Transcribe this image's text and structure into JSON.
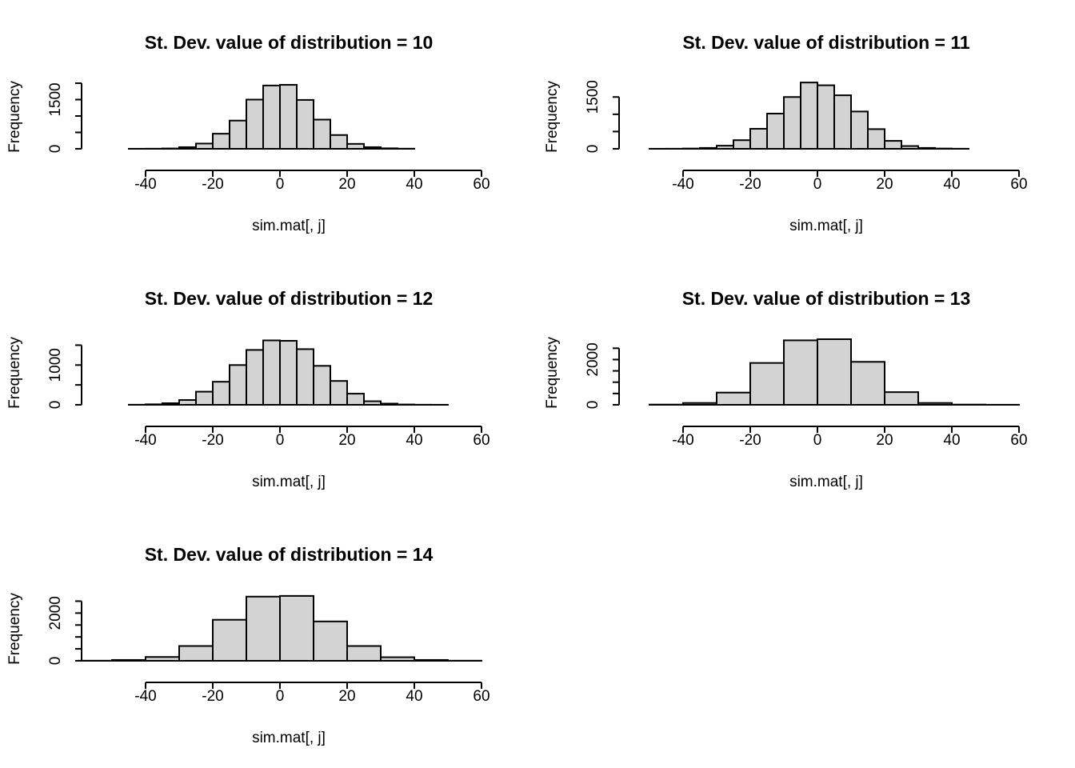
{
  "chart_data": [
    {
      "type": "bar",
      "title": "St. Dev. value of distribution =  10",
      "xlabel": "sim.mat[, j]",
      "ylabel": "Frequency",
      "x_ticks": [
        -40,
        -20,
        0,
        20,
        40,
        60
      ],
      "y_ticks": [
        0,
        500,
        1000,
        1500,
        2000
      ],
      "y_tick_labels": [
        "0",
        "",
        "",
        "1500",
        ""
      ],
      "xlim": [
        -40,
        60
      ],
      "ylim": [
        0,
        2000
      ],
      "bins": [
        {
          "x0": -45,
          "x1": -40,
          "count": 1
        },
        {
          "x0": -40,
          "x1": -35,
          "count": 3
        },
        {
          "x0": -35,
          "x1": -30,
          "count": 10
        },
        {
          "x0": -30,
          "x1": -25,
          "count": 50
        },
        {
          "x0": -25,
          "x1": -20,
          "count": 160
        },
        {
          "x0": -20,
          "x1": -15,
          "count": 460
        },
        {
          "x0": -15,
          "x1": -10,
          "count": 860
        },
        {
          "x0": -10,
          "x1": -5,
          "count": 1500
        },
        {
          "x0": -5,
          "x1": 0,
          "count": 1930
        },
        {
          "x0": 0,
          "x1": 5,
          "count": 1950
        },
        {
          "x0": 5,
          "x1": 10,
          "count": 1490
        },
        {
          "x0": 10,
          "x1": 15,
          "count": 890
        },
        {
          "x0": 15,
          "x1": 20,
          "count": 420
        },
        {
          "x0": 20,
          "x1": 25,
          "count": 150
        },
        {
          "x0": 25,
          "x1": 30,
          "count": 50
        },
        {
          "x0": 30,
          "x1": 35,
          "count": 15
        },
        {
          "x0": 35,
          "x1": 40,
          "count": 4
        }
      ]
    },
    {
      "type": "bar",
      "title": "St. Dev. value of distribution =  11",
      "xlabel": "sim.mat[, j]",
      "ylabel": "Frequency",
      "x_ticks": [
        -40,
        -20,
        0,
        20,
        40,
        60
      ],
      "y_ticks": [
        0,
        500,
        1000,
        1500
      ],
      "y_tick_labels": [
        "0",
        "",
        "",
        "1500"
      ],
      "xlim": [
        -40,
        60
      ],
      "ylim": [
        0,
        1900
      ],
      "bins": [
        {
          "x0": -50,
          "x1": -45,
          "count": 1
        },
        {
          "x0": -45,
          "x1": -40,
          "count": 2
        },
        {
          "x0": -40,
          "x1": -35,
          "count": 8
        },
        {
          "x0": -35,
          "x1": -30,
          "count": 25
        },
        {
          "x0": -30,
          "x1": -25,
          "count": 90
        },
        {
          "x0": -25,
          "x1": -20,
          "count": 250
        },
        {
          "x0": -20,
          "x1": -15,
          "count": 580
        },
        {
          "x0": -15,
          "x1": -10,
          "count": 1020
        },
        {
          "x0": -10,
          "x1": -5,
          "count": 1500
        },
        {
          "x0": -5,
          "x1": 0,
          "count": 1920
        },
        {
          "x0": 0,
          "x1": 5,
          "count": 1840
        },
        {
          "x0": 5,
          "x1": 10,
          "count": 1550
        },
        {
          "x0": 10,
          "x1": 15,
          "count": 1080
        },
        {
          "x0": 15,
          "x1": 20,
          "count": 570
        },
        {
          "x0": 20,
          "x1": 25,
          "count": 230
        },
        {
          "x0": 25,
          "x1": 30,
          "count": 80
        },
        {
          "x0": 30,
          "x1": 35,
          "count": 25
        },
        {
          "x0": 35,
          "x1": 40,
          "count": 8
        },
        {
          "x0": 40,
          "x1": 45,
          "count": 2
        }
      ]
    },
    {
      "type": "bar",
      "title": "St. Dev. value of distribution =  12",
      "xlabel": "sim.mat[, j]",
      "ylabel": "Frequency",
      "x_ticks": [
        -40,
        -20,
        0,
        20,
        40,
        60
      ],
      "y_ticks": [
        0,
        500,
        1000,
        1500
      ],
      "y_tick_labels": [
        "0",
        "",
        "1000",
        ""
      ],
      "xlim": [
        -40,
        60
      ],
      "ylim": [
        0,
        1650
      ],
      "bins": [
        {
          "x0": -45,
          "x1": -40,
          "count": 2
        },
        {
          "x0": -40,
          "x1": -35,
          "count": 12
        },
        {
          "x0": -35,
          "x1": -30,
          "count": 40
        },
        {
          "x0": -30,
          "x1": -25,
          "count": 120
        },
        {
          "x0": -25,
          "x1": -20,
          "count": 330
        },
        {
          "x0": -20,
          "x1": -15,
          "count": 580
        },
        {
          "x0": -15,
          "x1": -10,
          "count": 1000
        },
        {
          "x0": -10,
          "x1": -5,
          "count": 1380
        },
        {
          "x0": -5,
          "x1": 0,
          "count": 1620
        },
        {
          "x0": 0,
          "x1": 5,
          "count": 1610
        },
        {
          "x0": 5,
          "x1": 10,
          "count": 1400
        },
        {
          "x0": 10,
          "x1": 15,
          "count": 980
        },
        {
          "x0": 15,
          "x1": 20,
          "count": 600
        },
        {
          "x0": 20,
          "x1": 25,
          "count": 280
        },
        {
          "x0": 25,
          "x1": 30,
          "count": 90
        },
        {
          "x0": 30,
          "x1": 35,
          "count": 30
        },
        {
          "x0": 35,
          "x1": 40,
          "count": 8
        },
        {
          "x0": 40,
          "x1": 45,
          "count": 2
        },
        {
          "x0": 45,
          "x1": 50,
          "count": 1
        }
      ]
    },
    {
      "type": "bar",
      "title": "St. Dev. value of distribution =  13",
      "xlabel": "sim.mat[, j]",
      "ylabel": "Frequency",
      "x_ticks": [
        -40,
        -20,
        0,
        20,
        40,
        60
      ],
      "y_ticks": [
        0,
        500,
        1000,
        1500,
        2000,
        2500
      ],
      "y_tick_labels": [
        "0",
        "",
        "",
        "",
        "2000",
        ""
      ],
      "xlim": [
        -40,
        60
      ],
      "ylim": [
        0,
        2900
      ],
      "bins": [
        {
          "x0": -50,
          "x1": -40,
          "count": 10
        },
        {
          "x0": -40,
          "x1": -30,
          "count": 80
        },
        {
          "x0": -30,
          "x1": -20,
          "count": 540
        },
        {
          "x0": -20,
          "x1": -10,
          "count": 1850
        },
        {
          "x0": -10,
          "x1": 0,
          "count": 2850
        },
        {
          "x0": 0,
          "x1": 10,
          "count": 2900
        },
        {
          "x0": 10,
          "x1": 20,
          "count": 1900
        },
        {
          "x0": 20,
          "x1": 30,
          "count": 560
        },
        {
          "x0": 30,
          "x1": 40,
          "count": 80
        },
        {
          "x0": 40,
          "x1": 50,
          "count": 10
        },
        {
          "x0": 50,
          "x1": 60,
          "count": 2
        }
      ]
    },
    {
      "type": "bar",
      "title": "St. Dev. value of distribution =  14",
      "xlabel": "sim.mat[, j]",
      "ylabel": "Frequency",
      "x_ticks": [
        -40,
        -20,
        0,
        20,
        40,
        60
      ],
      "y_ticks": [
        0,
        500,
        1000,
        1500,
        2000,
        2500
      ],
      "y_tick_labels": [
        "0",
        "",
        "",
        "",
        "2000",
        ""
      ],
      "xlim": [
        -60,
        60
      ],
      "ylim": [
        0,
        2750
      ],
      "bins": [
        {
          "x0": -60,
          "x1": -50,
          "count": 5
        },
        {
          "x0": -50,
          "x1": -40,
          "count": 35
        },
        {
          "x0": -40,
          "x1": -30,
          "count": 160
        },
        {
          "x0": -30,
          "x1": -20,
          "count": 620
        },
        {
          "x0": -20,
          "x1": -10,
          "count": 1720
        },
        {
          "x0": -10,
          "x1": 0,
          "count": 2690
        },
        {
          "x0": 0,
          "x1": 10,
          "count": 2720
        },
        {
          "x0": 10,
          "x1": 20,
          "count": 1650
        },
        {
          "x0": 20,
          "x1": 30,
          "count": 620
        },
        {
          "x0": 30,
          "x1": 40,
          "count": 150
        },
        {
          "x0": 40,
          "x1": 50,
          "count": 35
        },
        {
          "x0": 50,
          "x1": 60,
          "count": 5
        }
      ]
    }
  ]
}
